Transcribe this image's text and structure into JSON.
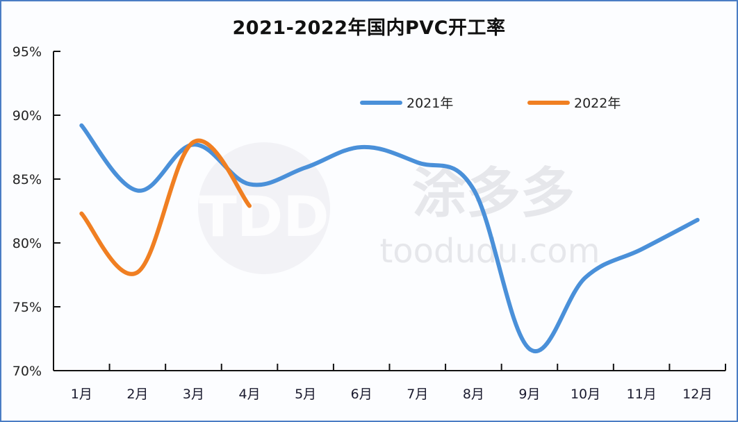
{
  "chart_data": {
    "type": "line",
    "title": "2021-2022年国内PVC开工率",
    "xlabel": "",
    "ylabel": "",
    "categories": [
      "1月",
      "2月",
      "3月",
      "4月",
      "5月",
      "6月",
      "7月",
      "8月",
      "9月",
      "10月",
      "11月",
      "12月"
    ],
    "ylim": [
      70,
      95
    ],
    "yticks": [
      "70%",
      "75%",
      "80%",
      "85%",
      "90%",
      "95%"
    ],
    "grid": false,
    "legend_position": "top-right inside plot",
    "series": [
      {
        "name": "2021年",
        "color": "#4a90d9",
        "values": [
          89.2,
          84.1,
          87.7,
          84.6,
          85.9,
          87.5,
          86.3,
          84.2,
          71.7,
          77.3,
          79.5,
          81.8
        ]
      },
      {
        "name": "2022年",
        "color": "#f07f22",
        "values": [
          82.3,
          77.7,
          87.9,
          82.9
        ]
      }
    ],
    "watermark": {
      "logo": "TDD",
      "cn": "涂多多",
      "url": "toodudu.com"
    }
  }
}
